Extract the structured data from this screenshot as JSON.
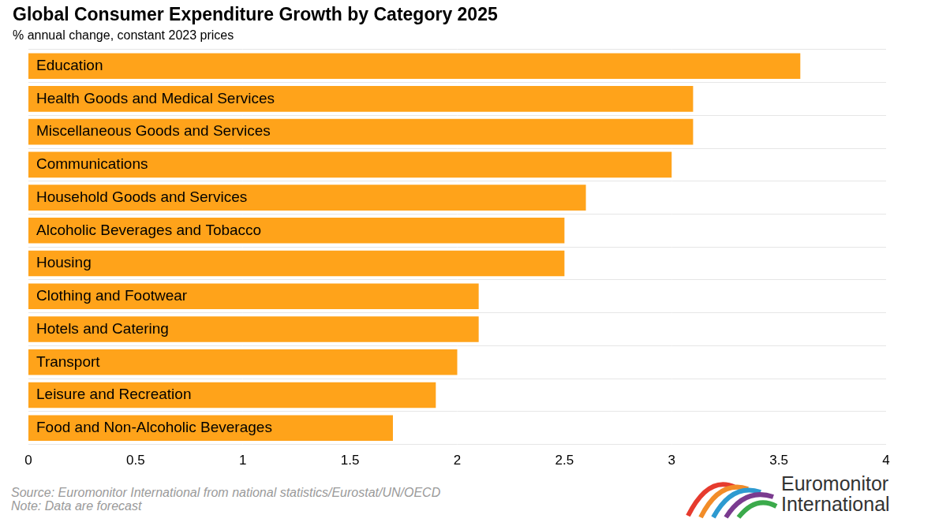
{
  "chart_data": {
    "type": "bar",
    "orientation": "horizontal",
    "title": "Global Consumer Expenditure Growth by Category 2025",
    "subtitle": "% annual change, constant 2023 prices",
    "categories": [
      "Education",
      "Health Goods and Medical Services",
      "Miscellaneous Goods and Services",
      "Communications",
      "Household Goods and Services",
      "Alcoholic Beverages and Tobacco",
      "Housing",
      "Clothing and Footwear",
      "Hotels and Catering",
      "Transport",
      "Leisure and Recreation",
      "Food and Non-Alcoholic Beverages"
    ],
    "values": [
      3.6,
      3.1,
      3.1,
      3.0,
      2.6,
      2.5,
      2.5,
      2.1,
      2.1,
      2.0,
      1.9,
      1.7
    ],
    "color": "#FFA31A",
    "xlim": [
      0,
      4
    ],
    "xticks": [
      0,
      0.5,
      1,
      1.5,
      2,
      2.5,
      3,
      3.5,
      4
    ],
    "grid": true,
    "source": "Source: Euromonitor International from national statistics/Eurostat/UN/OECD",
    "note": "Note: Data are forecast",
    "brand": [
      "Euromonitor",
      "International"
    ]
  }
}
